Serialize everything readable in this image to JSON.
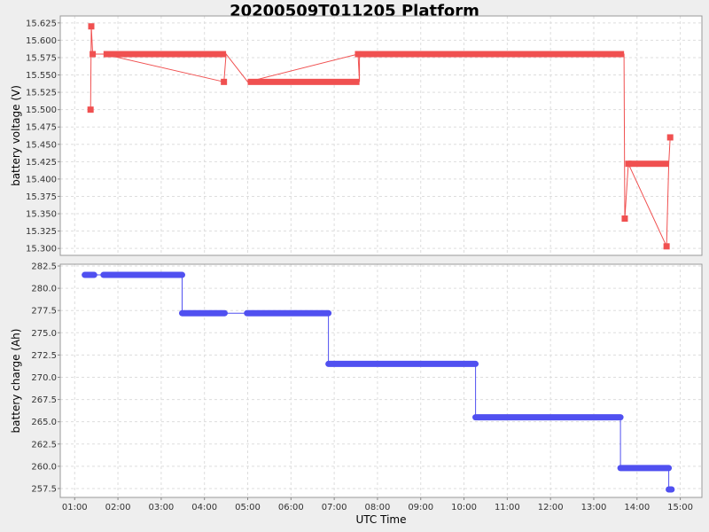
{
  "chart_data": {
    "type": "line",
    "title": "20200509T011205 Platform",
    "xlabel": "UTC Time",
    "x_ticks": [
      "01:00",
      "02:00",
      "03:00",
      "04:00",
      "05:00",
      "06:00",
      "07:00",
      "08:00",
      "09:00",
      "10:00",
      "11:00",
      "12:00",
      "13:00",
      "14:00",
      "15:00"
    ],
    "x_range": [
      "00:40",
      "15:30"
    ],
    "grid": true,
    "panels": [
      {
        "ylabel": "battery voltage (V)",
        "ylim": [
          15.29,
          15.635
        ],
        "y_ticks": [
          "15.300",
          "15.325",
          "15.350",
          "15.375",
          "15.400",
          "15.425",
          "15.450",
          "15.475",
          "15.500",
          "15.525",
          "15.550",
          "15.575",
          "15.600",
          "15.625"
        ],
        "color": "#f05050",
        "marker": "square",
        "series": {
          "points": [
            [
              "01:22",
              15.5
            ],
            [
              "01:23",
              15.62
            ],
            [
              "01:25",
              15.58
            ],
            [
              "04:27",
              15.54
            ],
            [
              "07:33",
              15.58
            ],
            [
              "13:43",
              15.343
            ],
            [
              "13:48",
              15.422
            ],
            [
              "14:41",
              15.303
            ],
            [
              "14:46",
              15.46
            ]
          ],
          "runs": [
            [
              "01:40",
              "04:30",
              15.58
            ],
            [
              "05:00",
              "07:35",
              15.54
            ],
            [
              "07:35",
              "13:42",
              15.58
            ],
            [
              "13:48",
              "14:44",
              15.422
            ]
          ]
        }
      },
      {
        "ylabel": "battery charge (Ah)",
        "ylim": [
          256.5,
          282.7
        ],
        "y_ticks": [
          "257.5",
          "260.0",
          "262.5",
          "265.0",
          "267.5",
          "270.0",
          "272.5",
          "275.0",
          "277.5",
          "280.0",
          "282.5"
        ],
        "color": "#5050f0",
        "marker": "circle",
        "series": {
          "steps": [
            [
              "01:14",
              "01:27",
              281.5
            ],
            [
              "01:40",
              "03:29",
              281.5
            ],
            [
              "03:29",
              "04:28",
              277.2
            ],
            [
              "04:59",
              "06:52",
              277.2
            ],
            [
              "06:52",
              "10:16",
              271.5
            ],
            [
              "10:16",
              "13:37",
              265.5
            ],
            [
              "13:37",
              "14:44",
              259.8
            ],
            [
              "14:44",
              "14:48",
              257.4
            ]
          ]
        }
      }
    ]
  }
}
